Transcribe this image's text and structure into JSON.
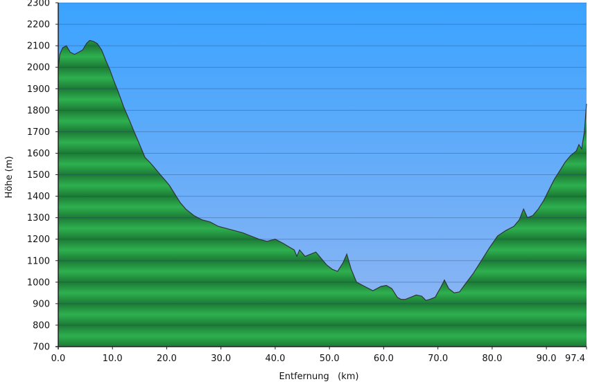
{
  "chart_data": {
    "type": "area",
    "title": "",
    "xlabel": "Entfernung   (km)",
    "ylabel": "Höhe (m)",
    "xlim": [
      0,
      97.4
    ],
    "ylim": [
      700,
      2300
    ],
    "x_ticks": [
      0,
      10,
      20,
      30,
      40,
      50,
      60,
      70,
      80,
      90,
      97.4
    ],
    "x_tick_labels": [
      "0.0",
      "10.0",
      "20.0",
      "30.0",
      "40.0",
      "50.0",
      "60.0",
      "70.0",
      "80.0",
      "90.0",
      "97.4"
    ],
    "y_ticks": [
      700,
      800,
      900,
      1000,
      1100,
      1200,
      1300,
      1400,
      1500,
      1600,
      1700,
      1800,
      1900,
      2000,
      2100,
      2200,
      2300
    ],
    "y_tick_labels": [
      "700",
      "800",
      "900",
      "1000",
      "1100",
      "1200",
      "1300",
      "1400",
      "1500",
      "1600",
      "1700",
      "1800",
      "1900",
      "2000",
      "2100",
      "2200",
      "2300"
    ],
    "grid": true,
    "colors": {
      "sky_top": "#3aa3ff",
      "sky_bottom": "#95b7f2",
      "fill_dark": "#1c7a35",
      "fill_light": "#2eb04f",
      "outline": "#333333"
    },
    "series": [
      {
        "x": [
          0,
          0.3,
          0.8,
          1.5,
          2.2,
          3.0,
          3.8,
          4.5,
          5.2,
          5.8,
          6.5,
          7.2,
          8.0,
          8.8,
          9.5,
          10.2,
          11.0,
          12.0,
          13.0,
          14.0,
          15.0,
          16.0,
          16.8,
          17.5,
          18.5,
          19.5,
          20.5,
          21.5,
          22.5,
          23.5,
          25.0,
          26.5,
          28.0,
          29.5,
          31.0,
          32.5,
          34.0,
          35.5,
          37.0,
          38.5,
          40.0,
          41.5,
          42.5,
          43.5,
          44.0,
          44.5,
          45.5,
          46.5,
          47.5,
          48.5,
          49.5,
          50.5,
          51.5,
          52.5,
          53.2,
          54.0,
          55.0,
          56.5,
          58.0,
          59.5,
          60.5,
          61.5,
          62.5,
          63.2,
          64.0,
          65.0,
          66.0,
          67.0,
          67.8,
          68.5,
          69.5,
          70.5,
          71.2,
          72.0,
          73.0,
          74.0,
          75.0,
          76.5,
          78.0,
          79.5,
          81.0,
          82.5,
          84.0,
          85.0,
          85.8,
          86.5,
          87.5,
          88.5,
          89.5,
          90.5,
          91.5,
          92.5,
          93.5,
          94.5,
          95.5,
          96.0,
          96.5,
          97.0,
          97.4
        ],
        "y": [
          2000,
          2060,
          2090,
          2100,
          2070,
          2060,
          2070,
          2080,
          2110,
          2125,
          2120,
          2110,
          2080,
          2030,
          1990,
          1940,
          1890,
          1820,
          1760,
          1700,
          1640,
          1580,
          1560,
          1540,
          1510,
          1480,
          1450,
          1410,
          1370,
          1340,
          1310,
          1290,
          1280,
          1260,
          1250,
          1240,
          1230,
          1215,
          1200,
          1190,
          1200,
          1180,
          1165,
          1150,
          1120,
          1150,
          1120,
          1130,
          1140,
          1110,
          1080,
          1060,
          1050,
          1090,
          1130,
          1060,
          1000,
          980,
          960,
          980,
          985,
          970,
          930,
          920,
          920,
          930,
          940,
          935,
          915,
          920,
          930,
          975,
          1010,
          970,
          950,
          955,
          990,
          1040,
          1100,
          1160,
          1215,
          1240,
          1260,
          1290,
          1340,
          1300,
          1310,
          1340,
          1380,
          1430,
          1480,
          1520,
          1560,
          1590,
          1610,
          1640,
          1620,
          1700,
          1830
        ]
      }
    ]
  }
}
